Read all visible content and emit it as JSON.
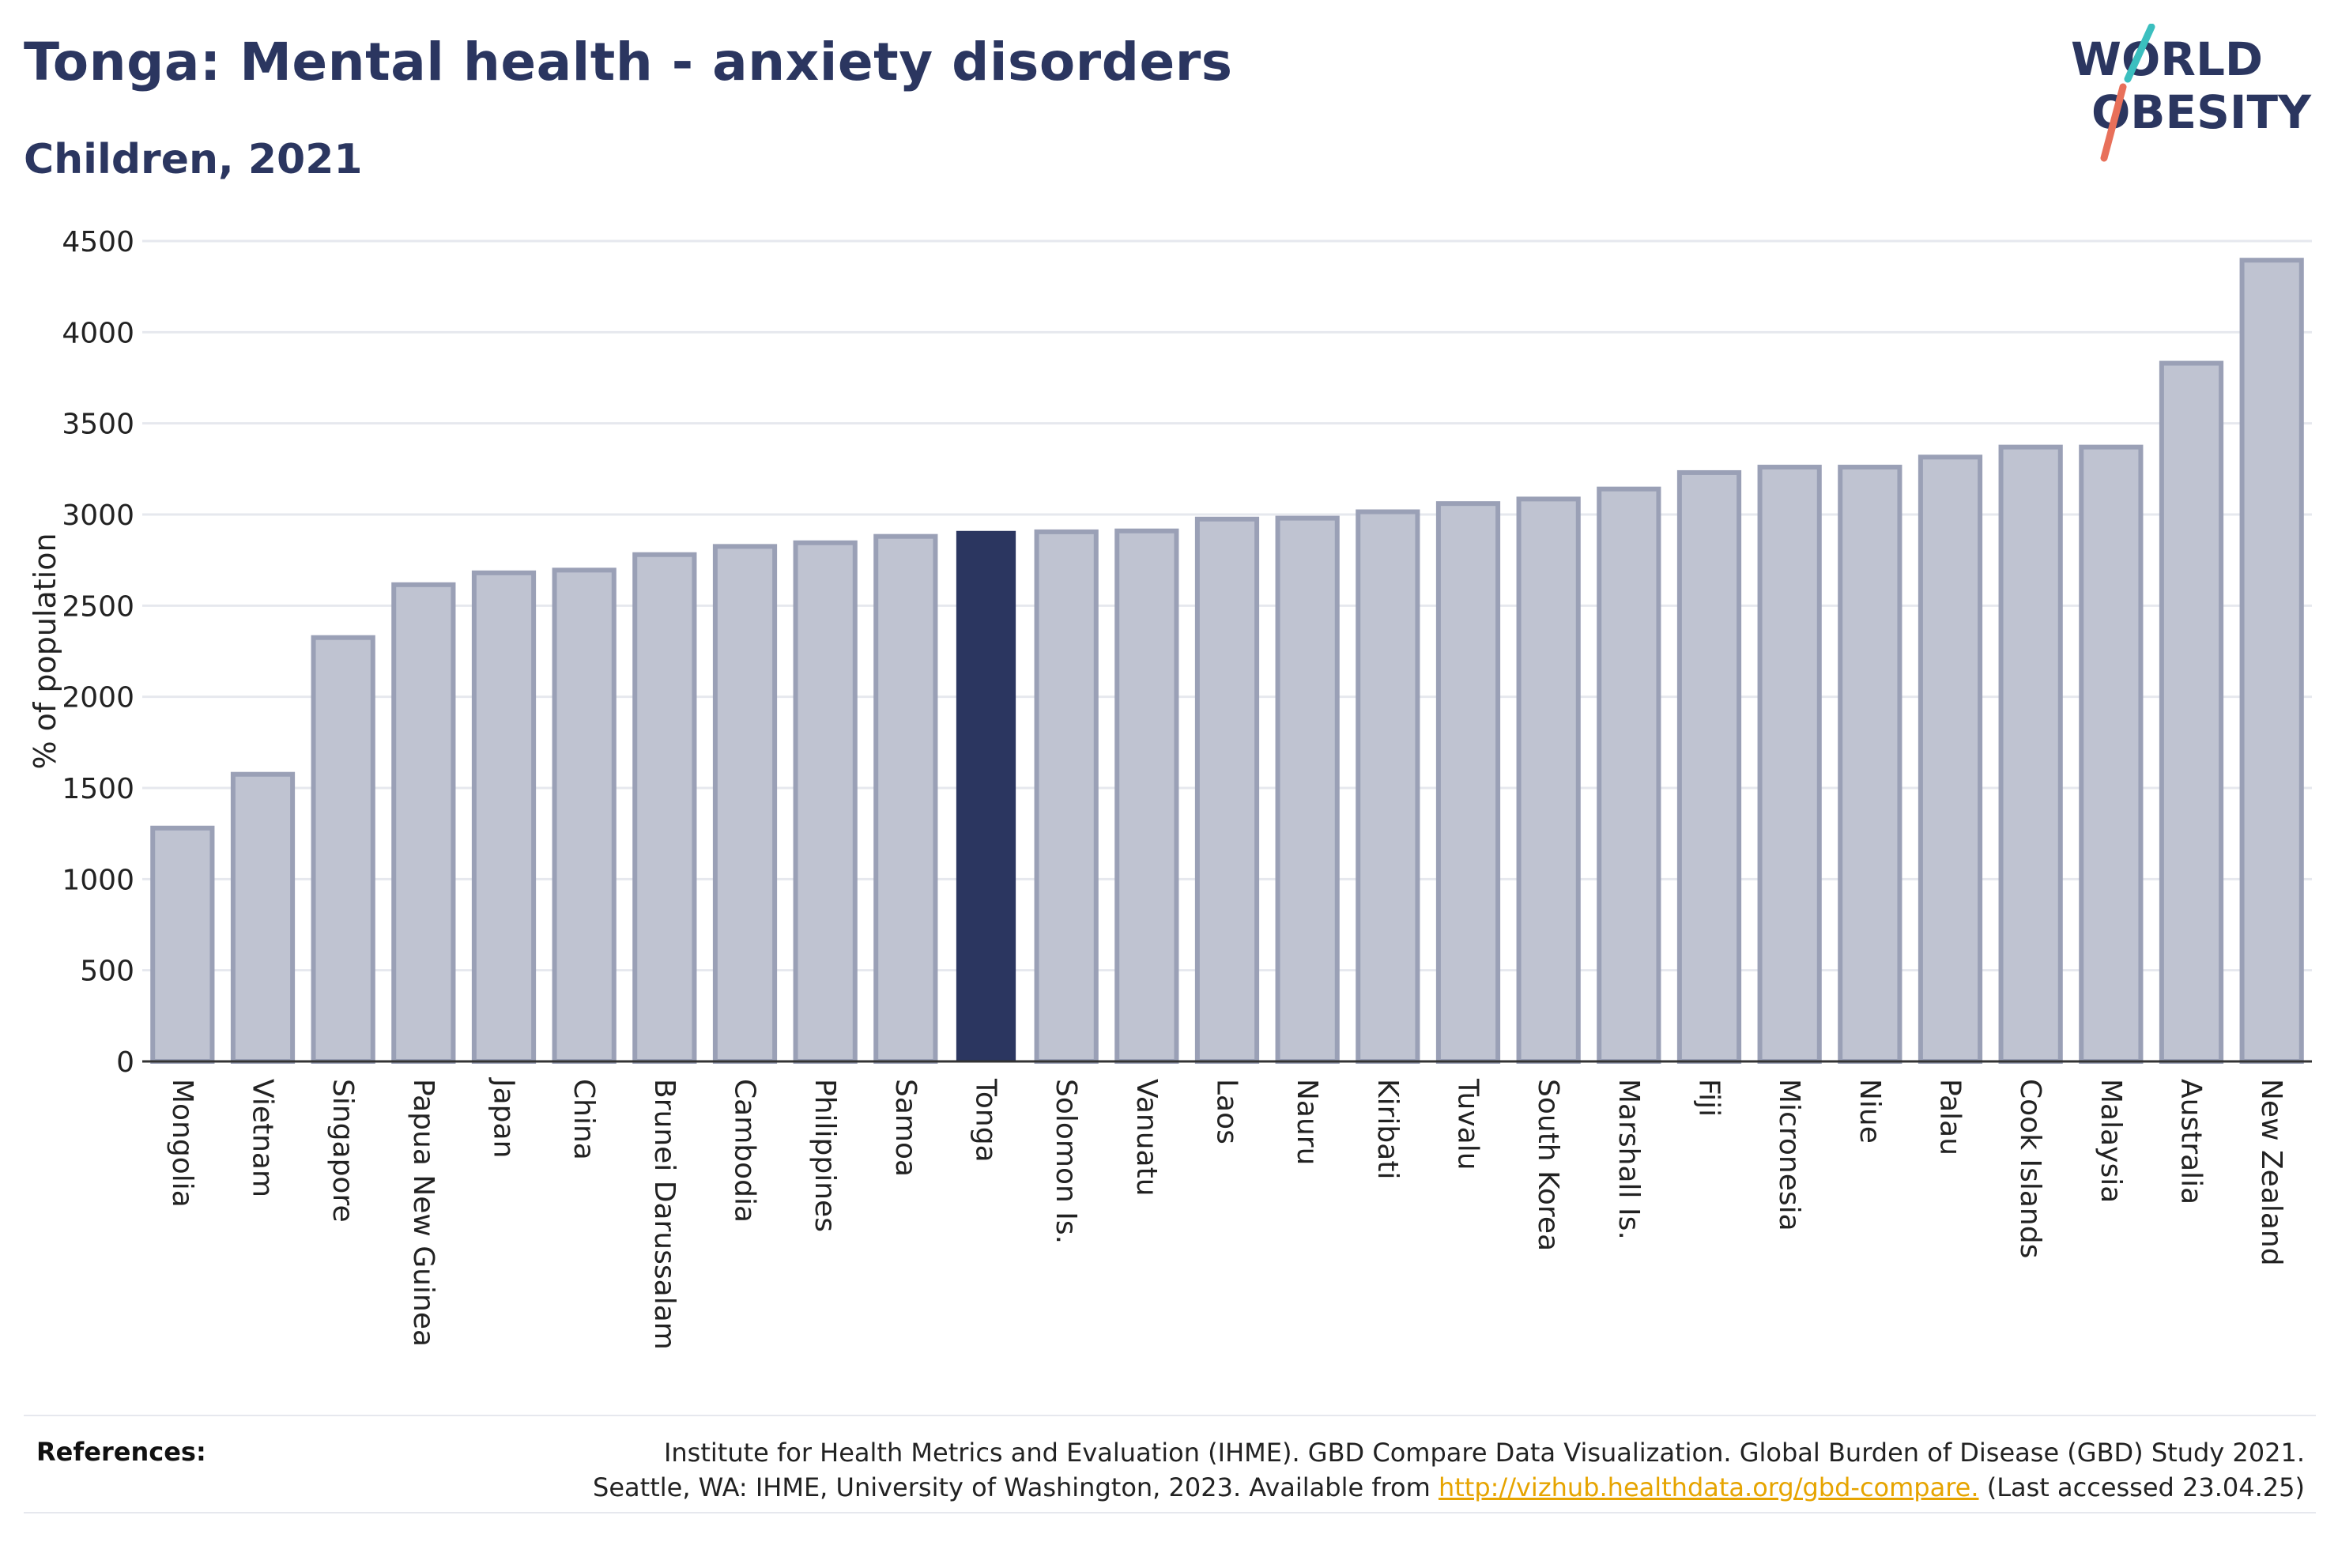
{
  "header": {
    "title": "Tonga: Mental health - anxiety disorders",
    "subtitle": "Children, 2021"
  },
  "logo": {
    "line1": "WORLD",
    "line2": "OBESITY",
    "colors": {
      "text": "#2b3660",
      "slash_teal": "#3bbfbf",
      "slash_coral": "#e8705a"
    }
  },
  "chart_data": {
    "type": "bar",
    "title": "Tonga: Mental health - anxiety disorders",
    "subtitle": "Children, 2021",
    "xlabel": "",
    "ylabel": "% of population",
    "ylim": [
      0,
      4500
    ],
    "yticks": [
      0,
      500,
      1000,
      1500,
      2000,
      2500,
      3000,
      3500,
      4000,
      4500
    ],
    "grid": true,
    "highlight": "Tonga",
    "colors": {
      "bar": "#bfc3d1",
      "bar_border": "#9aa0b6",
      "highlight": "#2b3660",
      "grid": "#e6e8ee",
      "axis": "#333333"
    },
    "categories": [
      "Mongolia",
      "Vietnam",
      "Singapore",
      "Papua New Guinea",
      "Japan",
      "China",
      "Brunei Darussalam",
      "Cambodia",
      "Philippines",
      "Samoa",
      "Tonga",
      "Solomon Is.",
      "Vanuatu",
      "Laos",
      "Nauru",
      "Kiribati",
      "Tuvalu",
      "South Korea",
      "Marshall Is.",
      "Fiji",
      "Micronesia",
      "Niue",
      "Palau",
      "Cook Islands",
      "Malaysia",
      "Australia",
      "New Zealand"
    ],
    "values": [
      1280,
      1575,
      2325,
      2615,
      2680,
      2695,
      2780,
      2825,
      2845,
      2880,
      2910,
      2905,
      2910,
      2975,
      2980,
      3015,
      3060,
      3085,
      3140,
      3230,
      3260,
      3260,
      3315,
      3370,
      3370,
      3830,
      4395
    ]
  },
  "references": {
    "label": "References:",
    "line1": "Institute for Health Metrics and Evaluation (IHME). GBD Compare Data Visualization. Global Burden of Disease (GBD) Study 2021.",
    "line2_prefix": "Seattle, WA: IHME, University of Washington, 2023. Available from ",
    "link": "http://vizhub.healthdata.org/gbd-compare.",
    "line2_suffix": " (Last accessed 23.04.25)"
  }
}
